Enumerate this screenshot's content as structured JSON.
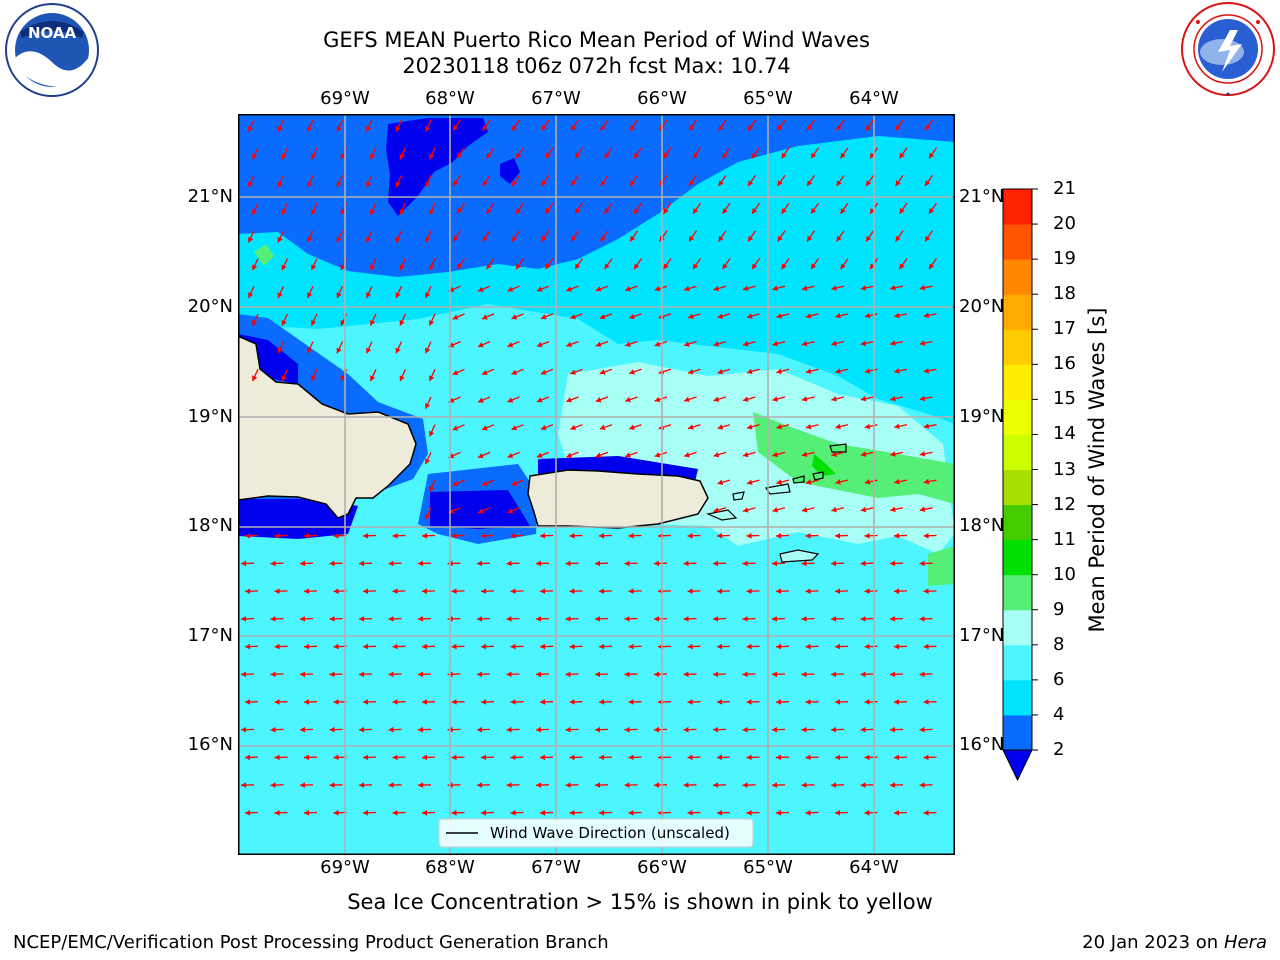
{
  "title_line1": "GEFS MEAN Puerto Rico Mean Period of Wind Waves",
  "title_line2": "20230118 t06z 072h fcst   Max: 10.74",
  "logos": {
    "left": "noaa-logo",
    "right": "national-weather-service-logo"
  },
  "map": {
    "lon_labels": [
      "69°W",
      "68°W",
      "67°W",
      "66°W",
      "65°W",
      "64°W"
    ],
    "lat_labels": [
      "21°N",
      "20°N",
      "19°N",
      "18°N",
      "17°N",
      "16°N"
    ],
    "grid": true,
    "legend_label": "Wind Wave Direction (unscaled)",
    "arrow_color": "#ff0000"
  },
  "colorbar": {
    "title": "Mean Period of Wind Waves [s]",
    "levels": [
      "2",
      "4",
      "6",
      "8",
      "9",
      "10",
      "11",
      "12",
      "13",
      "14",
      "15",
      "16",
      "17",
      "18",
      "19",
      "20",
      "21"
    ],
    "colors": [
      "#0a6cff",
      "#00e5ff",
      "#4df5ff",
      "#a8fff5",
      "#55ee77",
      "#00e000",
      "#44cc00",
      "#aadd00",
      "#ccff00",
      "#eeff00",
      "#ffee00",
      "#ffcc00",
      "#ffaa00",
      "#ff8800",
      "#ff5500",
      "#ff2200",
      "#ff0000"
    ],
    "under_color": "#0000ee"
  },
  "note": "Sea Ice Concentration > 15% is shown in pink to yellow",
  "footer_left": "NCEP/EMC/Verification Post Processing Product Generation Branch",
  "footer_right_prefix": "20 Jan 2023 on ",
  "footer_right_host": "Hera"
}
